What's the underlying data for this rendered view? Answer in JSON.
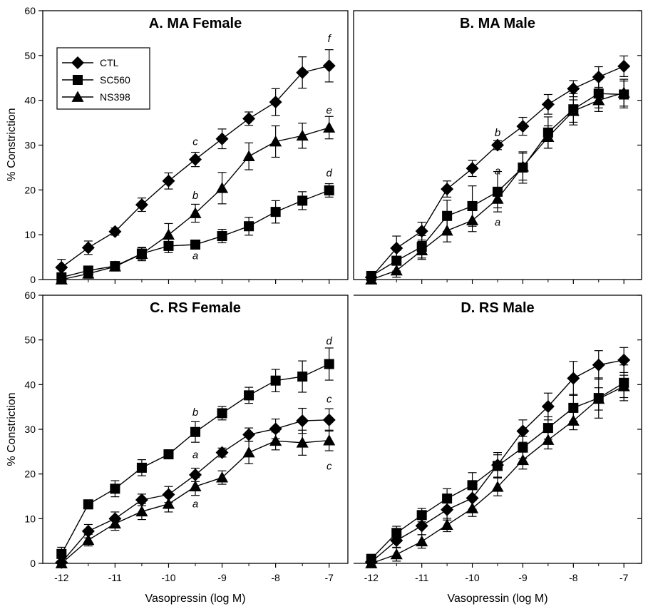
{
  "figure": {
    "ylabel": "% Constriction",
    "xlabel": "Vasopressin (log M)",
    "x_ticks": [
      "-12",
      "-11",
      "-10",
      "-9",
      "-8",
      "-7"
    ],
    "y_ticks": [
      "0",
      "10",
      "20",
      "30",
      "40",
      "50",
      "60"
    ],
    "legend": [
      {
        "name": "CTL",
        "marker": "diamond"
      },
      {
        "name": "SC560",
        "marker": "square"
      },
      {
        "name": "NS398",
        "marker": "triangle"
      }
    ],
    "colors": {
      "marks": "#000000",
      "background": "#ffffff"
    }
  },
  "chart_data": [
    {
      "type": "line",
      "title": "A. MA Female",
      "xlabel": "",
      "ylabel": "% Constriction",
      "xlim": [
        -12.35,
        -6.65
      ],
      "ylim": [
        0,
        60
      ],
      "x": [
        -12,
        -11.5,
        -11,
        -10.5,
        -10,
        -9.5,
        -9,
        -8.5,
        -8,
        -7.5,
        -7
      ],
      "series": [
        {
          "name": "CTL",
          "marker": "diamond",
          "values": [
            2.7,
            7.1,
            10.7,
            16.7,
            22,
            26.8,
            31.4,
            35.9,
            39.6,
            46.2,
            47.7
          ],
          "errors": [
            1.8,
            1.5,
            0.8,
            1.5,
            1.8,
            1.6,
            2.2,
            1.5,
            3,
            3.5,
            3.6
          ]
        },
        {
          "name": "SC560",
          "marker": "square",
          "values": [
            0.5,
            2,
            3,
            5.8,
            7.5,
            7.8,
            9.7,
            11.9,
            15.1,
            17.6,
            19.9
          ],
          "errors": [
            0.4,
            0.8,
            1,
            1.3,
            1.5,
            1,
            1.5,
            2,
            2.5,
            2,
            1.5
          ]
        },
        {
          "name": "NS398",
          "marker": "triangle",
          "values": [
            0,
            1.3,
            2.9,
            5.7,
            10,
            14.8,
            20.4,
            27.5,
            30.8,
            32.1,
            33.9
          ],
          "errors": [
            0,
            1,
            1,
            1.5,
            2.5,
            2,
            3.5,
            3,
            3.5,
            2.8,
            2.5
          ]
        }
      ],
      "annotations": [
        {
          "text": "a",
          "x": -9.5,
          "y": 4.5
        },
        {
          "text": "b",
          "x": -9.5,
          "y": 18
        },
        {
          "text": "c",
          "x": -9.5,
          "y": 30
        },
        {
          "text": "d",
          "x": -7,
          "y": 23
        },
        {
          "text": "e",
          "x": -7,
          "y": 37
        },
        {
          "text": "f",
          "x": -7,
          "y": 53
        }
      ]
    },
    {
      "type": "line",
      "title": "B. MA Male",
      "xlabel": "",
      "ylabel": "",
      "xlim": [
        -12.35,
        -6.65
      ],
      "ylim": [
        0,
        60
      ],
      "x": [
        -12,
        -11.5,
        -11,
        -10.5,
        -10,
        -9.5,
        -9,
        -8.5,
        -8,
        -7.5,
        -7
      ],
      "series": [
        {
          "name": "CTL",
          "marker": "diamond",
          "values": [
            0.5,
            7,
            10.8,
            20.2,
            24.8,
            30,
            34.2,
            39.1,
            42.6,
            45.2,
            47.6
          ],
          "errors": [
            0.5,
            2.7,
            2,
            1.8,
            1.8,
            1,
            2,
            2.2,
            1.8,
            2.3,
            2.3
          ]
        },
        {
          "name": "SC560",
          "marker": "square",
          "values": [
            0.8,
            4.2,
            7.3,
            14.2,
            16.4,
            19.6,
            25,
            32.8,
            38,
            41.5,
            41.3
          ],
          "errors": [
            0.8,
            2.3,
            2.5,
            3.5,
            4.5,
            4.5,
            3.5,
            3.5,
            3.5,
            3.2,
            3
          ]
        },
        {
          "name": "NS398",
          "marker": "triangle",
          "values": [
            0,
            2,
            6.5,
            10.9,
            13.2,
            18,
            25.2,
            31.8,
            37.6,
            40,
            41.7
          ],
          "errors": [
            0,
            1.5,
            2,
            2.5,
            2.5,
            2,
            3,
            2.5,
            2.5,
            2.5,
            3
          ]
        }
      ],
      "annotations": [
        {
          "text": "a",
          "x": -9.5,
          "y": 23.5
        },
        {
          "text": "a",
          "x": -9.5,
          "y": 12
        },
        {
          "text": "b",
          "x": -9.5,
          "y": 32
        }
      ]
    },
    {
      "type": "line",
      "title": "C. RS Female",
      "xlabel": "Vasopressin (log M)",
      "ylabel": "% Constriction",
      "xlim": [
        -12.35,
        -6.65
      ],
      "ylim": [
        0,
        60
      ],
      "x": [
        -12,
        -11.5,
        -11,
        -10.5,
        -10,
        -9.5,
        -9,
        -8.5,
        -8,
        -7.5,
        -7
      ],
      "series": [
        {
          "name": "CTL",
          "marker": "diamond",
          "values": [
            0.2,
            7.2,
            10,
            14.2,
            15.4,
            19.8,
            24.8,
            28.8,
            30.1,
            31.9,
            32.1
          ],
          "errors": [
            0.2,
            1.5,
            1.5,
            1.3,
            1.8,
            1.5,
            1,
            1.5,
            2.2,
            2.8,
            2.5
          ]
        },
        {
          "name": "SC560",
          "marker": "square",
          "values": [
            2.1,
            13.2,
            16.7,
            21.4,
            24.4,
            29.4,
            33.6,
            37.6,
            40.9,
            41.8,
            44.6
          ],
          "errors": [
            1.5,
            1,
            1.8,
            1.8,
            1,
            2.3,
            1.5,
            1.8,
            2.5,
            3.5,
            3.6
          ]
        },
        {
          "name": "NS398",
          "marker": "triangle",
          "values": [
            0,
            5.2,
            8.9,
            11.6,
            13.3,
            17.2,
            19.2,
            24.8,
            27.4,
            27,
            27.5
          ],
          "errors": [
            0,
            1.3,
            1.5,
            1.8,
            1.8,
            2,
            1.5,
            2.5,
            2,
            2.8,
            2.3
          ]
        }
      ],
      "annotations": [
        {
          "text": "a",
          "x": -9.5,
          "y": 23.5
        },
        {
          "text": "a",
          "x": -9.5,
          "y": 12.5
        },
        {
          "text": "b",
          "x": -9.5,
          "y": 33
        },
        {
          "text": "c",
          "x": -7,
          "y": 36
        },
        {
          "text": "c",
          "x": -7,
          "y": 21
        },
        {
          "text": "d",
          "x": -7,
          "y": 49
        }
      ]
    },
    {
      "type": "line",
      "title": "D. RS Male",
      "xlabel": "Vasopressin (log M)",
      "ylabel": "",
      "xlim": [
        -12.35,
        -6.65
      ],
      "ylim": [
        0,
        60
      ],
      "x": [
        -12,
        -11.5,
        -11,
        -10.5,
        -10,
        -9.5,
        -9,
        -8.5,
        -8,
        -7.5,
        -7
      ],
      "series": [
        {
          "name": "CTL",
          "marker": "diamond",
          "values": [
            0.3,
            5.1,
            8.4,
            12,
            14.6,
            22,
            29.6,
            35.1,
            41.4,
            44.4,
            45.5
          ],
          "errors": [
            0.3,
            1.5,
            2,
            2.3,
            2.5,
            2.8,
            2.5,
            3,
            3.8,
            3.2,
            2.8
          ]
        },
        {
          "name": "SC560",
          "marker": "square",
          "values": [
            1,
            6.8,
            10.8,
            14.5,
            17.5,
            21.8,
            25.9,
            30.3,
            34.8,
            37,
            40.4
          ],
          "errors": [
            1,
            1.5,
            1.5,
            2.2,
            2.8,
            2.5,
            2.5,
            2.5,
            3,
            4.5,
            4
          ]
        },
        {
          "name": "NS398",
          "marker": "triangle",
          "values": [
            0,
            2,
            4.9,
            8.6,
            12.3,
            17.1,
            23.1,
            27.6,
            31.9,
            36.8,
            39.6
          ],
          "errors": [
            0,
            1.5,
            1.5,
            1.5,
            1.8,
            2,
            2,
            2,
            2,
            2.5,
            2.5
          ]
        }
      ],
      "annotations": []
    }
  ]
}
